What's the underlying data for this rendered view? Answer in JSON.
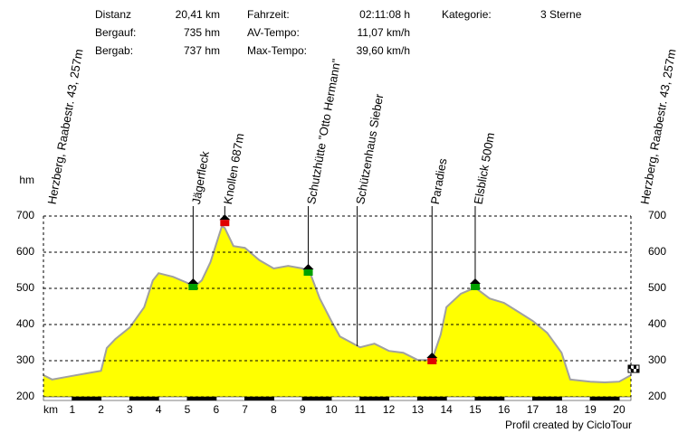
{
  "chart_data": {
    "type": "area",
    "stats": [
      {
        "label": "Distanz",
        "value": "20,41 km"
      },
      {
        "label": "Bergauf:",
        "value": "735 hm"
      },
      {
        "label": "Bergab:",
        "value": "737 hm"
      },
      {
        "label": "Fahrzeit:",
        "value": "02:11:08 h"
      },
      {
        "label": "AV-Tempo:",
        "value": "11,07 km/h"
      },
      {
        "label": "Max-Tempo:",
        "value": "39,60 km/h"
      },
      {
        "label": "Kategorie:",
        "value": "3 Sterne"
      }
    ],
    "y_label": "hm",
    "x_label": "km",
    "footer": "Profil created by CicloTour",
    "x": [
      0,
      0.3,
      1,
      1.5,
      2,
      2.2,
      2.5,
      3,
      3.5,
      3.8,
      4,
      4.5,
      5,
      5.2,
      5.5,
      5.8,
      6.2,
      6.3,
      6.6,
      7,
      7.5,
      8,
      8.5,
      9,
      9.3,
      9.6,
      10,
      10.3,
      11,
      11.5,
      12,
      12.5,
      13,
      13.5,
      13.8,
      14,
      14.5,
      15,
      15.5,
      16,
      16.5,
      17,
      17.5,
      18,
      18.3,
      19,
      19.5,
      20,
      20.41
    ],
    "series": [
      {
        "color": "#ffff00",
        "line_color": "#a0a0a0",
        "values": [
          260,
          248,
          258,
          265,
          272,
          335,
          360,
          392,
          448,
          522,
          542,
          532,
          515,
          502,
          522,
          572,
          672,
          667,
          617,
          612,
          578,
          555,
          562,
          555,
          535,
          472,
          410,
          367,
          337,
          347,
          327,
          322,
          302,
          302,
          372,
          448,
          485,
          502,
          472,
          460,
          435,
          410,
          377,
          322,
          248,
          242,
          240,
          242,
          260
        ]
      }
    ],
    "annotations": [
      {
        "label": "Herzberg, Raabestr. 43, 257m",
        "x": 0
      },
      {
        "label": "Jägerfleck",
        "x": 5.2,
        "y": 510,
        "marker_color": "#00a000"
      },
      {
        "label": "Knollen 687m",
        "x": 6.3,
        "y": 687,
        "marker_color": "#e00000"
      },
      {
        "label": "Schutzhütte \"Otto Hermann\"",
        "x": 9.2,
        "y": 550,
        "marker_color": "#00a000"
      },
      {
        "label": "Schützenhaus Sieber",
        "x": 10.9,
        "y": 340
      },
      {
        "label": "Paradies",
        "x": 13.5,
        "y": 305,
        "marker_color": "#e00000"
      },
      {
        "label": "Elsblick 500m",
        "x": 15.0,
        "y": 510,
        "marker_color": "#00a000"
      },
      {
        "label": "Herzberg, Raabestr. 43, 257m",
        "x": 20.41
      }
    ],
    "xlim": [
      0,
      20.41
    ],
    "ylim": [
      200,
      700
    ],
    "xticks": [
      1,
      2,
      3,
      4,
      5,
      6,
      7,
      8,
      9,
      10,
      11,
      12,
      13,
      14,
      15,
      16,
      17,
      18,
      19,
      20
    ],
    "yticks": [
      200,
      300,
      400,
      500,
      600,
      700
    ],
    "grid": true
  }
}
